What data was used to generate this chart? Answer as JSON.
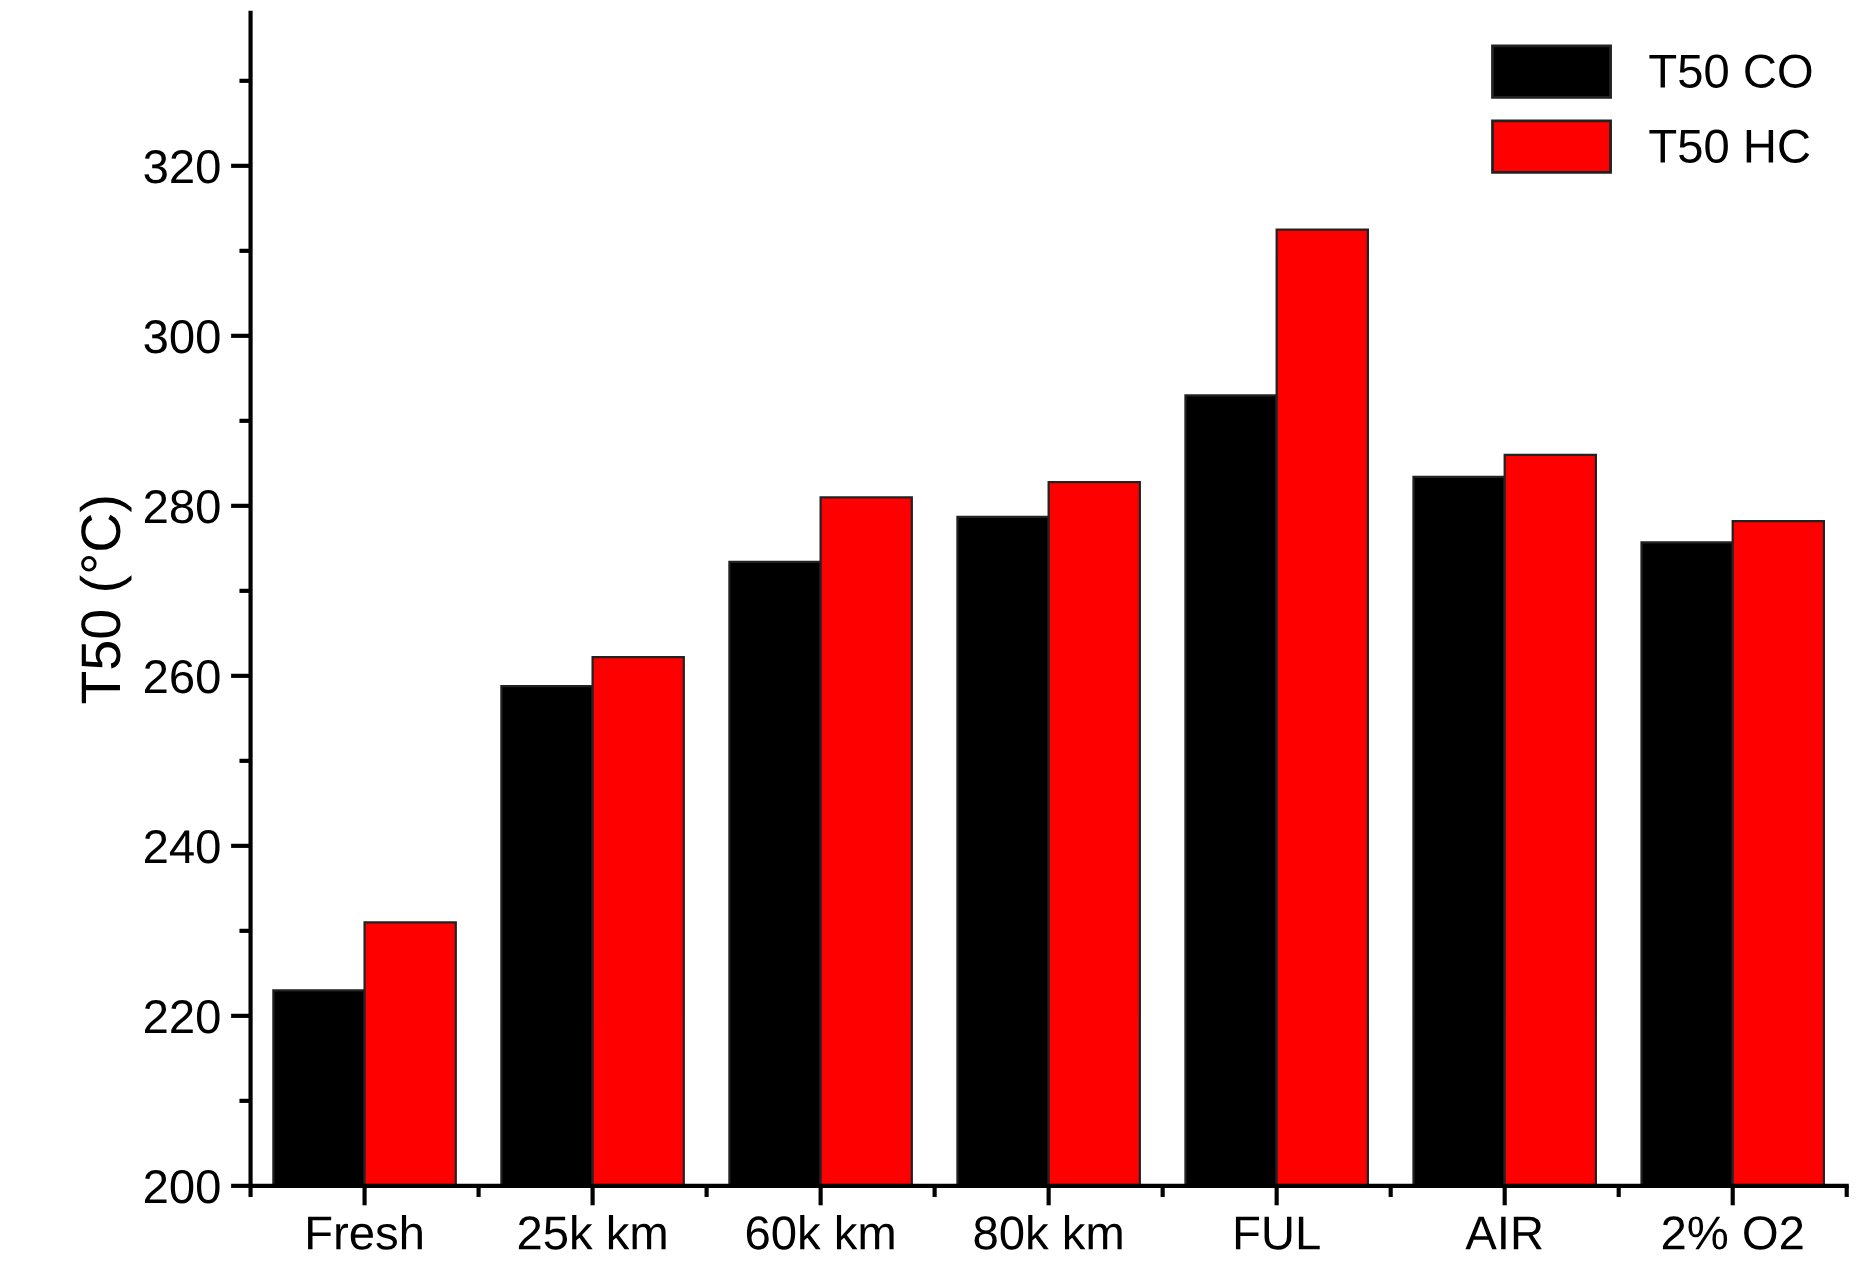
{
  "chart_data": {
    "type": "bar",
    "ylabel": "T50 (°C)",
    "categories": [
      "Fresh",
      "25k km",
      "60k km",
      "80k km",
      "FUL",
      "AIR",
      "2% O2"
    ],
    "series": [
      {
        "name": "T50 CO",
        "color": "#000000",
        "values": [
          223,
          258.8,
          273.4,
          278.7,
          293,
          283.4,
          275.7
        ]
      },
      {
        "name": "T50 HC",
        "color": "#ff0000",
        "values": [
          231,
          262.2,
          281,
          282.8,
          312.5,
          286,
          278.2
        ]
      }
    ],
    "ylim": [
      200,
      338
    ],
    "yticks": [
      200,
      220,
      240,
      260,
      280,
      300,
      320
    ],
    "legend": "top right",
    "grid": false
  }
}
